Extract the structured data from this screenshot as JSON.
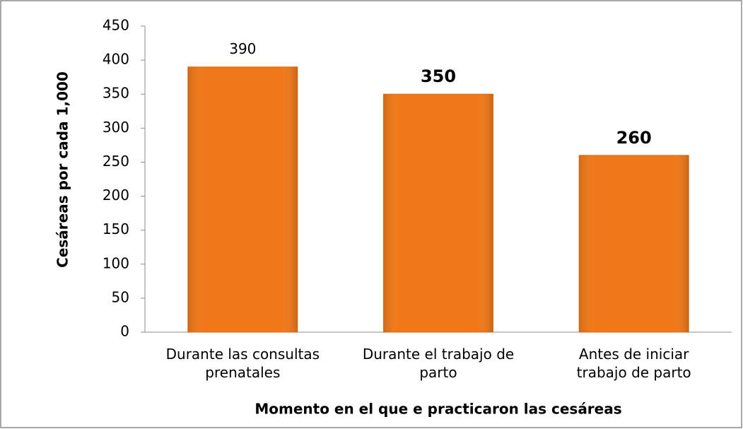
{
  "chart_data": {
    "type": "bar",
    "categories": [
      "Durante las consultas\nprenatales",
      "Durante el trabajo de\nparto",
      "Antes de iniciar\ntrabajo de parto"
    ],
    "values": [
      390,
      350,
      260
    ],
    "value_label_bold": [
      false,
      true,
      true
    ],
    "color": "#f07818",
    "ylim": [
      0,
      450
    ],
    "yticks": [
      0,
      50,
      100,
      150,
      200,
      250,
      300,
      350,
      400,
      450
    ],
    "grid": false,
    "y_label": "Cesáreas por cada 1,000",
    "x_label": "Momento en el que e practicaron las cesáreas"
  }
}
